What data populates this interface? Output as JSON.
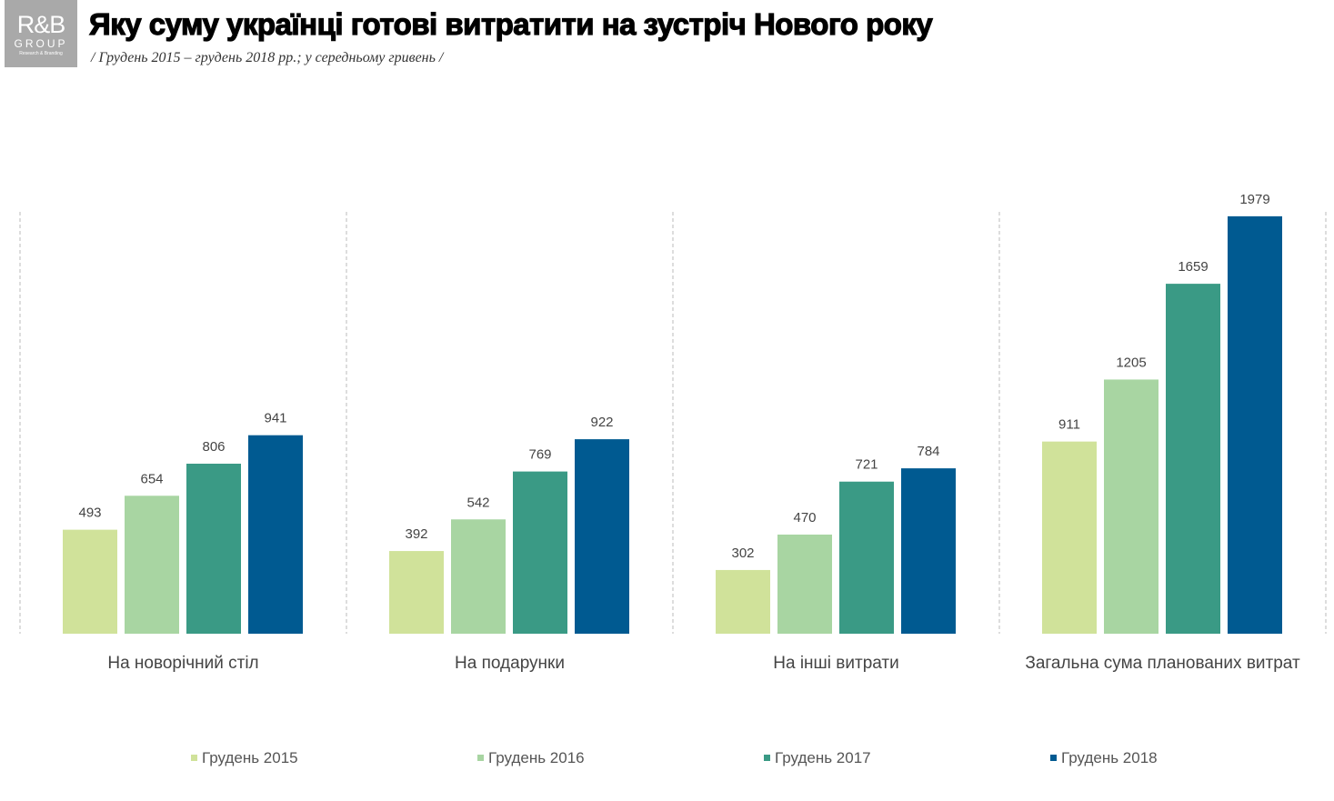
{
  "logo": {
    "text": "R&B GROUP",
    "tagline": "Research & Branding"
  },
  "title": "Яку суму українці готові витратити на зустріч Нового року",
  "subtitle": "/ Грудень 2015 – грудень 2018 рр.; у середньому гривень /",
  "chart_data": {
    "type": "bar",
    "title": "Яку суму українці готові витратити на зустріч Нового року",
    "subtitle": "/ Грудень 2015 – грудень 2018 рр.; у середньому гривень /",
    "categories": [
      "На новорічний стіл",
      "На подарунки",
      "На інші витрати",
      "Загальна сума планованих витрат"
    ],
    "series": [
      {
        "name": "Грудень 2015",
        "color": "#d0e29a",
        "values": [
          493,
          392,
          302,
          911
        ]
      },
      {
        "name": "Грудень 2016",
        "color": "#a8d5a2",
        "values": [
          654,
          542,
          470,
          1205
        ]
      },
      {
        "name": "Грудень 2017",
        "color": "#3a9a85",
        "values": [
          806,
          769,
          721,
          1659
        ]
      },
      {
        "name": "Грудень 2018",
        "color": "#005a91",
        "values": [
          941,
          922,
          784,
          1979
        ]
      }
    ],
    "ylim": [
      0,
      2000
    ],
    "grid": false,
    "data_labels": true,
    "legend": "bottom"
  }
}
